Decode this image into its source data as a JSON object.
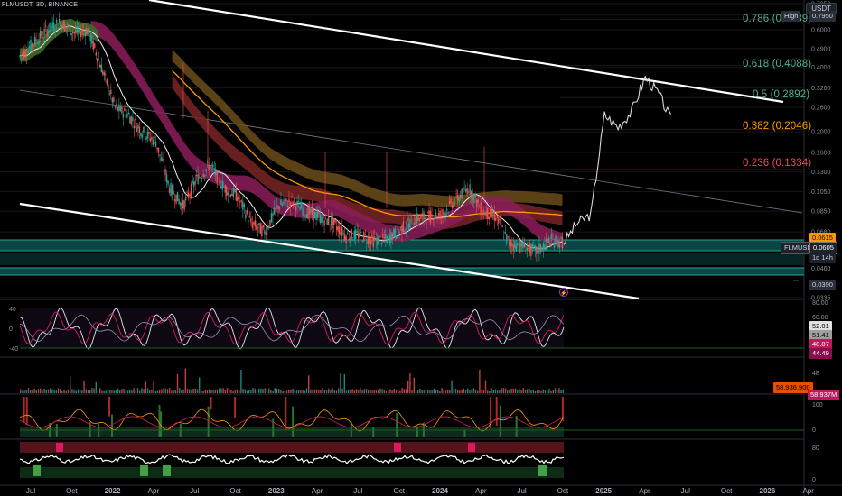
{
  "header": {
    "symbol": "FLMUSDT, 3D, BINANCE",
    "currency": "USDT"
  },
  "colors": {
    "fib786": "#4caf8a",
    "fib618": "#4caf8a",
    "fib05": "#4caf8a",
    "fib382": "#ff9800",
    "fib236": "#f44355",
    "teal": "#0e6b66",
    "ema_red": "#8a2a2a",
    "ema_brown": "#7a5a1e",
    "orange": "#ff9800",
    "magenta": "#d81b60"
  },
  "fib_levels": [
    {
      "label": "0.786 (0.6689)",
      "key": "fib786"
    },
    {
      "label": "0.618 (0.4088)",
      "key": "fib618"
    },
    {
      "label": "0.5 (0.2892)",
      "key": "fib05"
    },
    {
      "label": "0.382 (0.2046)",
      "key": "fib382"
    },
    {
      "label": "0.236 (0.1334)",
      "key": "fib236"
    }
  ],
  "price_axis_labels": [
    "0.7950",
    "0.7030",
    "0.6000",
    "0.4900",
    "0.4000",
    "0.3200",
    "0.2600",
    "0.2000",
    "0.1600",
    "0.1300",
    "0.1050",
    "0.0850",
    "0.0680",
    "0.0460",
    "0.0335"
  ],
  "price_tags": {
    "high": "High",
    "high_value": "0.7950",
    "symbol_label": "FLMUSDT",
    "last_price": "0.0605",
    "countdown": "1d 14h",
    "ema_value": "0.0615",
    "low_label": "Low",
    "low_value": "0.0390"
  },
  "osc1": {
    "axis": [
      "40",
      "0",
      "-40"
    ],
    "right_axis": [
      "80.00",
      "60.00"
    ],
    "values": [
      "52.01",
      "51.41",
      "48.87",
      "44.49"
    ]
  },
  "volume": {
    "axis": [
      "4B"
    ],
    "value": "58.936.900",
    "value2": "58.937M"
  },
  "osc2": {
    "axis": [
      "100",
      "0"
    ]
  },
  "osc3": {
    "axis": [
      "80",
      "0"
    ]
  },
  "time_axis": [
    "Jul",
    "Oct",
    "2022",
    "Apr",
    "Jul",
    "Oct",
    "2023",
    "Apr",
    "Jul",
    "Oct",
    "2024",
    "Apr",
    "Jul",
    "Oct",
    "2025",
    "Apr",
    "Jul",
    "Oct",
    "2026",
    "Apr",
    "Jul"
  ],
  "chart_data": {
    "type": "line",
    "title": "FLMUSDT, 3D, BINANCE",
    "xlabel": "",
    "ylabel": "",
    "y_scale": "log",
    "ylim": [
      0.0335,
      0.795
    ],
    "high": 0.795,
    "low": 0.039,
    "last": 0.0605,
    "fibonacci": [
      {
        "ratio": 0.786,
        "price": 0.6689
      },
      {
        "ratio": 0.618,
        "price": 0.4088
      },
      {
        "ratio": 0.5,
        "price": 0.2892
      },
      {
        "ratio": 0.382,
        "price": 0.2046
      },
      {
        "ratio": 0.236,
        "price": 0.1334
      }
    ],
    "price_series": {
      "name": "",
      "points": [
        [
          "2021-06",
          0.45
        ],
        [
          "2021-07",
          0.52
        ],
        [
          "2021-08",
          0.6
        ],
        [
          "2021-09",
          0.65
        ],
        [
          "2021-10",
          0.58
        ],
        [
          "2021-11",
          0.6
        ],
        [
          "2021-12",
          0.4
        ],
        [
          "2022-01",
          0.26
        ],
        [
          "2022-02",
          0.24
        ],
        [
          "2022-03",
          0.2
        ],
        [
          "2022-04",
          0.18
        ],
        [
          "2022-05",
          0.11
        ],
        [
          "2022-06",
          0.09
        ],
        [
          "2022-07",
          0.12
        ],
        [
          "2022-08",
          0.14
        ],
        [
          "2022-09",
          0.11
        ],
        [
          "2022-10",
          0.1
        ],
        [
          "2022-11",
          0.075
        ],
        [
          "2022-12",
          0.068
        ],
        [
          "2023-01",
          0.09
        ],
        [
          "2023-02",
          0.095
        ],
        [
          "2023-03",
          0.085
        ],
        [
          "2023-04",
          0.08
        ],
        [
          "2023-05",
          0.075
        ],
        [
          "2023-06",
          0.065
        ],
        [
          "2023-07",
          0.066
        ],
        [
          "2023-08",
          0.062
        ],
        [
          "2023-09",
          0.063
        ],
        [
          "2023-10",
          0.07
        ],
        [
          "2023-11",
          0.078
        ],
        [
          "2023-12",
          0.08
        ],
        [
          "2024-01",
          0.082
        ],
        [
          "2024-02",
          0.095
        ],
        [
          "2024-03",
          0.11
        ],
        [
          "2024-04",
          0.085
        ],
        [
          "2024-05",
          0.08
        ],
        [
          "2024-06",
          0.06
        ],
        [
          "2024-07",
          0.058
        ],
        [
          "2024-08",
          0.055
        ],
        [
          "2024-09",
          0.062
        ],
        [
          "2024-10",
          0.0605
        ]
      ]
    },
    "projection_series": {
      "name": "",
      "points": [
        [
          "2024-10",
          0.0605
        ],
        [
          "2024-11",
          0.075
        ],
        [
          "2024-12",
          0.082
        ],
        [
          "2025-01",
          0.24
        ],
        [
          "2025-02",
          0.21
        ],
        [
          "2025-03",
          0.25
        ],
        [
          "2025-04",
          0.36
        ],
        [
          "2025-05",
          0.3
        ],
        [
          "2025-06",
          0.22
        ]
      ]
    }
  }
}
